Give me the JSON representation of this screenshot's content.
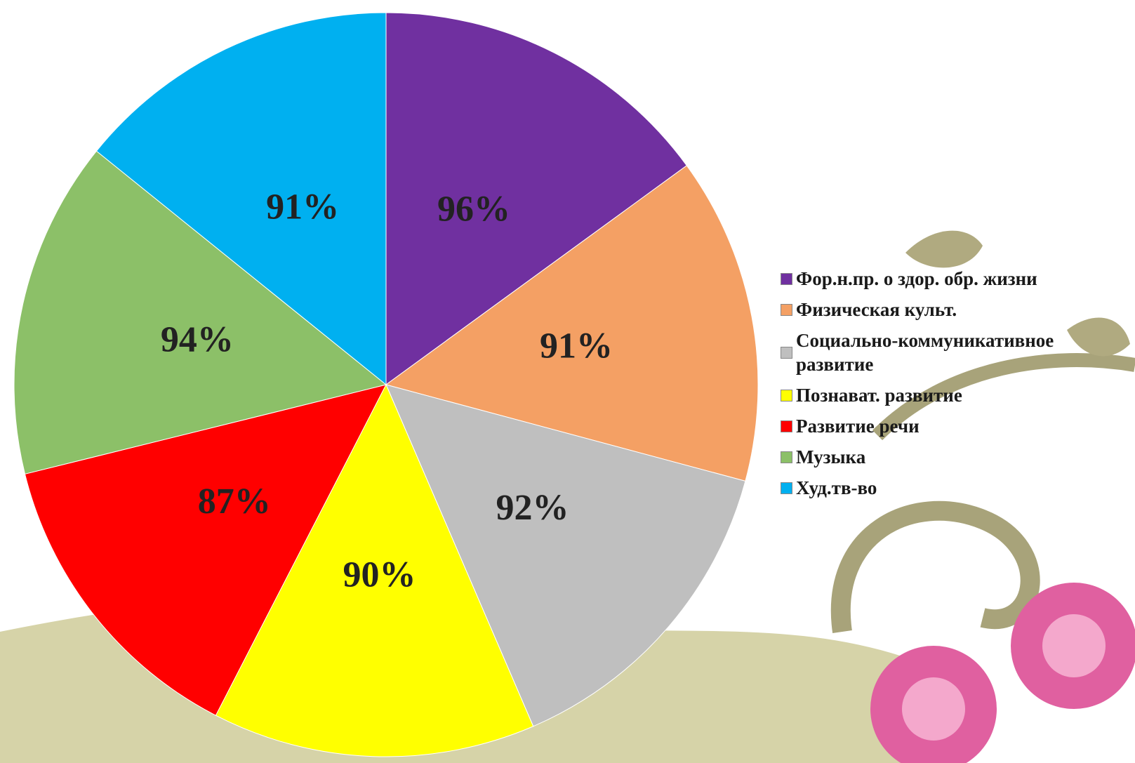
{
  "chart_data": {
    "type": "pie",
    "categories": [
      "Фор.н.пр. о здор. обр. жизни",
      "Физическая культ.",
      "Социально-коммуникативное развитие",
      "Познават. развитие",
      "Развитие речи",
      "Музыка",
      "Худ.тв-во"
    ],
    "values": [
      96,
      91,
      92,
      90,
      87,
      94,
      91
    ],
    "value_labels": [
      "96%",
      "91%",
      "92%",
      "90%",
      "87%",
      "94%",
      "91%"
    ],
    "colors": [
      "#7030a0",
      "#f4a064",
      "#bfbfbf",
      "#ffff00",
      "#ff0000",
      "#8cc068",
      "#00b0f0"
    ],
    "legend": "right"
  }
}
